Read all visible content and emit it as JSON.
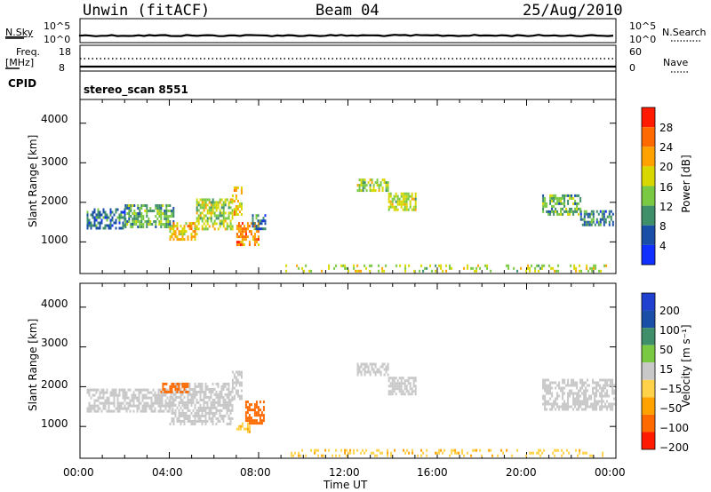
{
  "header": {
    "station": "Unwin (fitACF)",
    "beam": "Beam 04",
    "date": "25/Aug/2010"
  },
  "strip1": {
    "left_label": "N.Sky",
    "right_label": "N.Search",
    "left_ticks": [
      "10^5",
      "10^0"
    ],
    "right_ticks": [
      "10^5",
      "10^0"
    ]
  },
  "strip2": {
    "left_label_1": "Freq.",
    "left_label_2": "[MHz]",
    "right_label": "Nave",
    "left_ticks": [
      "18",
      "8"
    ],
    "right_ticks": [
      "60",
      "0"
    ]
  },
  "strip3": {
    "label": "CPID",
    "program": "stereo_scan 8551"
  },
  "colors": {
    "power": [
      "#1030ff",
      "#1a4fa8",
      "#3f8f6b",
      "#7ac943",
      "#d8d800",
      "#ffa200",
      "#ff6a00",
      "#ff1a00"
    ],
    "velocity": [
      "#ff1a00",
      "#ff6a00",
      "#ffa200",
      "#ffd24a",
      "#c8c8c8",
      "#7ac943",
      "#3f8f6b",
      "#1a4fa8",
      "#2040d0"
    ]
  },
  "chart_data": [
    {
      "type": "heatmap",
      "title": "",
      "xlabel": "",
      "ylabel": "Slant Range [km]",
      "xlim": [
        0,
        24
      ],
      "ylim": [
        200,
        4600
      ],
      "x_ticks": [
        "00:00",
        "04:00",
        "08:00",
        "12:00",
        "16:00",
        "20:00",
        "00:00"
      ],
      "y_ticks": [
        "1000",
        "2000",
        "3000",
        "4000"
      ],
      "colorbar": {
        "label": "Power [dB]",
        "ticks": [
          "4",
          "8",
          "12",
          "16",
          "20",
          "24",
          "28"
        ]
      },
      "regions": [
        {
          "t0": 0.3,
          "t1": 2.0,
          "r0": 1350,
          "r1": 1850,
          "value": 8
        },
        {
          "t0": 2.0,
          "t1": 4.2,
          "r0": 1400,
          "r1": 1950,
          "value": 12
        },
        {
          "t0": 4.0,
          "t1": 5.2,
          "r0": 1050,
          "r1": 1500,
          "value": 20
        },
        {
          "t0": 5.2,
          "t1": 6.8,
          "r0": 1300,
          "r1": 2100,
          "value": 16
        },
        {
          "t0": 6.8,
          "t1": 7.2,
          "r0": 1700,
          "r1": 2400,
          "value": 20
        },
        {
          "t0": 7.0,
          "t1": 8.0,
          "r0": 900,
          "r1": 1500,
          "value": 24
        },
        {
          "t0": 7.7,
          "t1": 8.3,
          "r0": 1300,
          "r1": 1700,
          "value": 8
        },
        {
          "t0": 12.4,
          "t1": 13.8,
          "r0": 2300,
          "r1": 2600,
          "value": 16
        },
        {
          "t0": 13.8,
          "t1": 15.0,
          "r0": 1800,
          "r1": 2250,
          "value": 16
        },
        {
          "t0": 20.7,
          "t1": 22.4,
          "r0": 1700,
          "r1": 2200,
          "value": 12
        },
        {
          "t0": 22.4,
          "t1": 23.9,
          "r0": 1400,
          "r1": 1800,
          "value": 8
        },
        {
          "t0": 9.2,
          "t1": 23.6,
          "r0": 250,
          "r1": 430,
          "value": 16
        }
      ]
    },
    {
      "type": "heatmap",
      "title": "",
      "xlabel": "Time UT",
      "ylabel": "Slant Range [km]",
      "xlim": [
        0,
        24
      ],
      "ylim": [
        200,
        4600
      ],
      "x_ticks": [
        "00:00",
        "04:00",
        "08:00",
        "12:00",
        "16:00",
        "20:00",
        "00:00"
      ],
      "y_ticks": [
        "1000",
        "2000",
        "3000",
        "4000"
      ],
      "colorbar": {
        "label": "Velocity [m s⁻¹]",
        "ticks": [
          "200",
          "100",
          "50",
          "15",
          "−15",
          "−50",
          "−100",
          "−200"
        ]
      },
      "regions": [
        {
          "t0": 0.3,
          "t1": 4.2,
          "r0": 1350,
          "r1": 1950,
          "value": 0
        },
        {
          "t0": 4.0,
          "t1": 6.8,
          "r0": 1050,
          "r1": 2100,
          "value": 0
        },
        {
          "t0": 3.6,
          "t1": 4.8,
          "r0": 1850,
          "r1": 2100,
          "value": -150
        },
        {
          "t0": 6.8,
          "t1": 7.2,
          "r0": 1700,
          "r1": 2400,
          "value": 0
        },
        {
          "t0": 7.4,
          "t1": 8.2,
          "r0": 1100,
          "r1": 1650,
          "value": -120
        },
        {
          "t0": 7.0,
          "t1": 7.6,
          "r0": 850,
          "r1": 1100,
          "value": -40
        },
        {
          "t0": 12.4,
          "t1": 13.8,
          "r0": 2300,
          "r1": 2600,
          "value": 0
        },
        {
          "t0": 13.8,
          "t1": 15.0,
          "r0": 1800,
          "r1": 2250,
          "value": 0
        },
        {
          "t0": 20.7,
          "t1": 23.9,
          "r0": 1400,
          "r1": 2200,
          "value": 0
        },
        {
          "t0": 9.2,
          "t1": 23.6,
          "r0": 250,
          "r1": 430,
          "value": -40
        }
      ]
    }
  ]
}
